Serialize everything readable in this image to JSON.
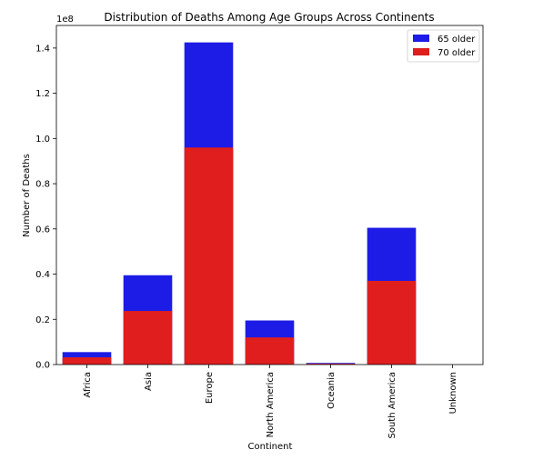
{
  "chart_data": {
    "type": "bar",
    "title": "Distribution of Deaths Among Age Groups Across Continents",
    "xlabel": "Continent",
    "ylabel": "Number of Deaths",
    "offset_text": "1e8",
    "categories": [
      "Africa",
      "Asia",
      "Europe",
      "North America",
      "Oceania",
      "South America",
      "Unknown"
    ],
    "series": [
      {
        "name": "65 older",
        "color": "#1c1ce6",
        "values": [
          5500000,
          39500000,
          142500000,
          19500000,
          700000,
          60500000,
          0
        ]
      },
      {
        "name": "70 older",
        "color": "#e01e1e",
        "values": [
          3200000,
          23700000,
          96000000,
          12000000,
          400000,
          37000000,
          0
        ]
      }
    ],
    "ylim": [
      0,
      150000000
    ],
    "yticks": [
      0,
      20000000,
      40000000,
      60000000,
      80000000,
      100000000,
      120000000,
      140000000
    ],
    "ytick_labels": [
      "0.0",
      "0.2",
      "0.4",
      "0.6",
      "0.8",
      "1.0",
      "1.2",
      "1.4"
    ],
    "legend_position": "top-right",
    "grid": false,
    "overlay": true
  }
}
